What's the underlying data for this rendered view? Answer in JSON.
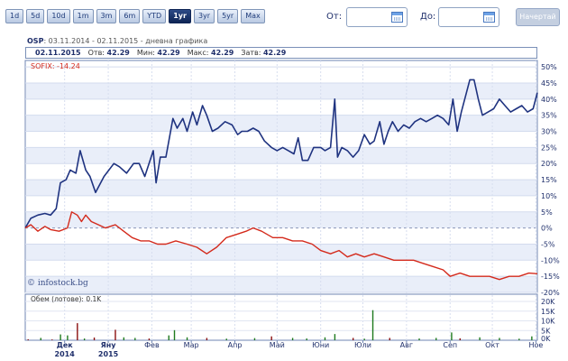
{
  "toolbar": {
    "ranges": [
      "1d",
      "5d",
      "10d",
      "1m",
      "3m",
      "6m",
      "YTD",
      "1yr",
      "3yr",
      "5yr",
      "Max"
    ],
    "active": "1yr",
    "from_label": "От:",
    "to_label": "До:",
    "submit_label": "Начертай"
  },
  "header": {
    "symbol": "OSP",
    "date_range": ": 03.11.2014 - 02.11.2015 - дневна графика"
  },
  "info": {
    "date": "02.11.2015",
    "open_label": "Отв:",
    "open": "42.29",
    "min_label": "Мин:",
    "min": "42.29",
    "max_label": "Макс:",
    "max": "42.29",
    "close_label": "Затв:",
    "close": "42.29"
  },
  "colors": {
    "stock": "#1f3380",
    "index": "#d42a1c",
    "volume_up": "#1e7a1e",
    "volume_down": "#8b1010"
  },
  "chart_data": [
    {
      "type": "line",
      "x_tick_labels": [
        "Дек\n2014",
        "Яну\n2015",
        "Фев",
        "Мар",
        "Апр",
        "Май",
        "Юни",
        "Юли",
        "Авг",
        "Сеп",
        "Окт",
        "Ное"
      ],
      "x_range": [
        "2014-11-03",
        "2015-11-02"
      ],
      "ylim": [
        -20,
        52
      ],
      "y_ticks": [
        -20,
        -15,
        -10,
        -5,
        0,
        5,
        10,
        15,
        20,
        25,
        30,
        35,
        40,
        45,
        50
      ],
      "y_unit": "%",
      "legend_label": "SOFIX: -14.24",
      "watermark": "© infostock.bg",
      "series": [
        {
          "name": "OSP",
          "color": "#1f3380",
          "points": [
            [
              "2014-11-03",
              0
            ],
            [
              "2014-11-07",
              3
            ],
            [
              "2014-11-12",
              4
            ],
            [
              "2014-11-17",
              4.5
            ],
            [
              "2014-11-21",
              4
            ],
            [
              "2014-11-25",
              6
            ],
            [
              "2014-11-28",
              14
            ],
            [
              "2014-12-02",
              15
            ],
            [
              "2014-12-05",
              18
            ],
            [
              "2014-12-09",
              17
            ],
            [
              "2014-12-12",
              24
            ],
            [
              "2014-12-16",
              18
            ],
            [
              "2014-12-19",
              16
            ],
            [
              "2014-12-23",
              11
            ],
            [
              "2014-12-29",
              16
            ],
            [
              "2015-01-05",
              20
            ],
            [
              "2015-01-09",
              19
            ],
            [
              "2015-01-14",
              17
            ],
            [
              "2015-01-19",
              20
            ],
            [
              "2015-01-23",
              20
            ],
            [
              "2015-01-27",
              16
            ],
            [
              "2015-02-02",
              24
            ],
            [
              "2015-02-04",
              14
            ],
            [
              "2015-02-07",
              22
            ],
            [
              "2015-02-11",
              22
            ],
            [
              "2015-02-16",
              34
            ],
            [
              "2015-02-19",
              31
            ],
            [
              "2015-02-23",
              34
            ],
            [
              "2015-02-26",
              30
            ],
            [
              "2015-03-02",
              36
            ],
            [
              "2015-03-05",
              32
            ],
            [
              "2015-03-09",
              38
            ],
            [
              "2015-03-12",
              35
            ],
            [
              "2015-03-16",
              30
            ],
            [
              "2015-03-20",
              31
            ],
            [
              "2015-03-25",
              33
            ],
            [
              "2015-03-30",
              32
            ],
            [
              "2015-04-03",
              29
            ],
            [
              "2015-04-06",
              30
            ],
            [
              "2015-04-10",
              30
            ],
            [
              "2015-04-14",
              31
            ],
            [
              "2015-04-18",
              30
            ],
            [
              "2015-04-22",
              27
            ],
            [
              "2015-04-27",
              25
            ],
            [
              "2015-05-01",
              24
            ],
            [
              "2015-05-05",
              25
            ],
            [
              "2015-05-09",
              24
            ],
            [
              "2015-05-13",
              23
            ],
            [
              "2015-05-16",
              28
            ],
            [
              "2015-05-19",
              21
            ],
            [
              "2015-05-23",
              21
            ],
            [
              "2015-05-27",
              25
            ],
            [
              "2015-06-01",
              25
            ],
            [
              "2015-06-04",
              24
            ],
            [
              "2015-06-08",
              25
            ],
            [
              "2015-06-11",
              40
            ],
            [
              "2015-06-13",
              22
            ],
            [
              "2015-06-16",
              25
            ],
            [
              "2015-06-20",
              24
            ],
            [
              "2015-06-24",
              22
            ],
            [
              "2015-06-28",
              24
            ],
            [
              "2015-07-02",
              29
            ],
            [
              "2015-07-06",
              26
            ],
            [
              "2015-07-09",
              27
            ],
            [
              "2015-07-13",
              33
            ],
            [
              "2015-07-16",
              26
            ],
            [
              "2015-07-19",
              30
            ],
            [
              "2015-07-22",
              33
            ],
            [
              "2015-07-26",
              30
            ],
            [
              "2015-07-30",
              32
            ],
            [
              "2015-08-03",
              31
            ],
            [
              "2015-08-07",
              33
            ],
            [
              "2015-08-11",
              34
            ],
            [
              "2015-08-15",
              33
            ],
            [
              "2015-08-19",
              34
            ],
            [
              "2015-08-23",
              35
            ],
            [
              "2015-08-27",
              34
            ],
            [
              "2015-08-31",
              32
            ],
            [
              "2015-09-03",
              40
            ],
            [
              "2015-09-06",
              30
            ],
            [
              "2015-09-09",
              36
            ],
            [
              "2015-09-12",
              41
            ],
            [
              "2015-09-15",
              46
            ],
            [
              "2015-09-18",
              46
            ],
            [
              "2015-09-21",
              40
            ],
            [
              "2015-09-24",
              35
            ],
            [
              "2015-09-28",
              36
            ],
            [
              "2015-10-02",
              37
            ],
            [
              "2015-10-06",
              40
            ],
            [
              "2015-10-10",
              38
            ],
            [
              "2015-10-14",
              36
            ],
            [
              "2015-10-18",
              37
            ],
            [
              "2015-10-22",
              38
            ],
            [
              "2015-10-26",
              36
            ],
            [
              "2015-10-30",
              37
            ],
            [
              "2015-11-02",
              42
            ]
          ]
        },
        {
          "name": "SOFIX",
          "color": "#d42a1c",
          "points": [
            [
              "2014-11-03",
              0
            ],
            [
              "2014-11-07",
              1
            ],
            [
              "2014-11-12",
              -1
            ],
            [
              "2014-11-17",
              0.5
            ],
            [
              "2014-11-21",
              -0.5
            ],
            [
              "2014-11-27",
              -1
            ],
            [
              "2014-12-03",
              0
            ],
            [
              "2014-12-06",
              5
            ],
            [
              "2014-12-10",
              4
            ],
            [
              "2014-12-13",
              2
            ],
            [
              "2014-12-16",
              4
            ],
            [
              "2014-12-20",
              2
            ],
            [
              "2014-12-25",
              1
            ],
            [
              "2014-12-30",
              0
            ],
            [
              "2015-01-06",
              1
            ],
            [
              "2015-01-12",
              -1
            ],
            [
              "2015-01-18",
              -3
            ],
            [
              "2015-01-24",
              -4
            ],
            [
              "2015-01-30",
              -4
            ],
            [
              "2015-02-05",
              -5
            ],
            [
              "2015-02-11",
              -5
            ],
            [
              "2015-02-18",
              -4
            ],
            [
              "2015-02-26",
              -5
            ],
            [
              "2015-03-05",
              -6
            ],
            [
              "2015-03-12",
              -8
            ],
            [
              "2015-03-19",
              -6
            ],
            [
              "2015-03-26",
              -3
            ],
            [
              "2015-04-02",
              -2
            ],
            [
              "2015-04-09",
              -1
            ],
            [
              "2015-04-14",
              0
            ],
            [
              "2015-04-20",
              -1
            ],
            [
              "2015-04-28",
              -3
            ],
            [
              "2015-05-05",
              -3
            ],
            [
              "2015-05-12",
              -4
            ],
            [
              "2015-05-19",
              -4
            ],
            [
              "2015-05-26",
              -5
            ],
            [
              "2015-06-01",
              -7
            ],
            [
              "2015-06-08",
              -8
            ],
            [
              "2015-06-14",
              -7
            ],
            [
              "2015-06-20",
              -9
            ],
            [
              "2015-06-26",
              -8
            ],
            [
              "2015-07-02",
              -9
            ],
            [
              "2015-07-09",
              -8
            ],
            [
              "2015-07-16",
              -9
            ],
            [
              "2015-07-23",
              -10
            ],
            [
              "2015-07-30",
              -10
            ],
            [
              "2015-08-06",
              -10
            ],
            [
              "2015-08-13",
              -11
            ],
            [
              "2015-08-20",
              -12
            ],
            [
              "2015-08-27",
              -13
            ],
            [
              "2015-09-01",
              -15
            ],
            [
              "2015-09-08",
              -14
            ],
            [
              "2015-09-15",
              -15
            ],
            [
              "2015-09-22",
              -15
            ],
            [
              "2015-09-29",
              -15
            ],
            [
              "2015-10-06",
              -16
            ],
            [
              "2015-10-13",
              -15
            ],
            [
              "2015-10-20",
              -15
            ],
            [
              "2015-10-27",
              -14
            ],
            [
              "2015-11-02",
              -14.2
            ]
          ]
        }
      ]
    },
    {
      "type": "bar",
      "title": "Обем (лотове): 0.1K",
      "ylim": [
        0,
        20000
      ],
      "y_tick_labels": [
        "0K",
        "5K",
        "10K",
        "15K",
        "20K"
      ],
      "up_color": "#1e7a1e",
      "down_color": "#8b1010",
      "bars": [
        [
          "2014-11-05",
          500,
          "d"
        ],
        [
          "2014-11-14",
          1200,
          "u"
        ],
        [
          "2014-11-22",
          400,
          "d"
        ],
        [
          "2014-11-28",
          3000,
          "u"
        ],
        [
          "2014-12-03",
          2500,
          "u"
        ],
        [
          "2014-12-10",
          8800,
          "d"
        ],
        [
          "2014-12-15",
          900,
          "u"
        ],
        [
          "2014-12-22",
          1400,
          "d"
        ],
        [
          "2015-01-06",
          5400,
          "d"
        ],
        [
          "2015-01-12",
          1500,
          "u"
        ],
        [
          "2015-01-20",
          1200,
          "u"
        ],
        [
          "2015-01-30",
          900,
          "d"
        ],
        [
          "2015-02-13",
          2500,
          "u"
        ],
        [
          "2015-02-17",
          5200,
          "u"
        ],
        [
          "2015-02-26",
          1500,
          "u"
        ],
        [
          "2015-03-12",
          1200,
          "d"
        ],
        [
          "2015-03-26",
          800,
          "u"
        ],
        [
          "2015-04-15",
          1100,
          "u"
        ],
        [
          "2015-04-27",
          2000,
          "d"
        ],
        [
          "2015-05-12",
          1200,
          "u"
        ],
        [
          "2015-05-22",
          900,
          "u"
        ],
        [
          "2015-06-04",
          1500,
          "u"
        ],
        [
          "2015-06-11",
          3200,
          "u"
        ],
        [
          "2015-06-24",
          1200,
          "d"
        ],
        [
          "2015-07-02",
          800,
          "u"
        ],
        [
          "2015-07-08",
          15500,
          "u"
        ],
        [
          "2015-07-20",
          1200,
          "d"
        ],
        [
          "2015-08-10",
          900,
          "u"
        ],
        [
          "2015-08-22",
          1200,
          "u"
        ],
        [
          "2015-09-02",
          4000,
          "u"
        ],
        [
          "2015-09-08",
          1000,
          "d"
        ],
        [
          "2015-09-22",
          1500,
          "u"
        ],
        [
          "2015-10-06",
          1200,
          "u"
        ],
        [
          "2015-10-20",
          800,
          "u"
        ],
        [
          "2015-10-29",
          2000,
          "u"
        ]
      ]
    }
  ]
}
